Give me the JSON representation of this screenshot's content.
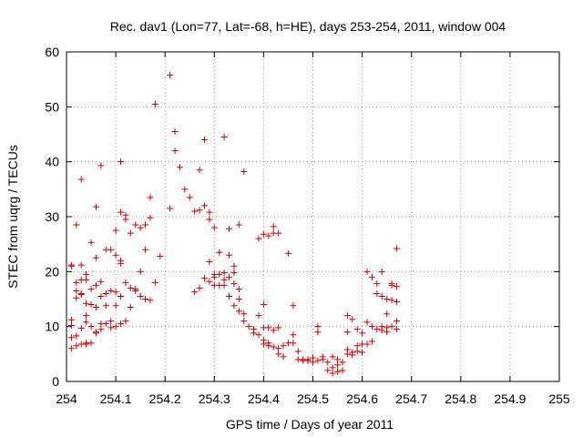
{
  "chart_data": {
    "type": "scatter",
    "title": "Rec. dav1 (Lon=77, Lat=-68, h=HE), days 253-254, 2011, window 004",
    "xlabel": "GPS time / Days of year 2011",
    "ylabel": "STEC from uqrg / TECUs",
    "xlim": [
      254,
      255
    ],
    "ylim": [
      0,
      60
    ],
    "x_ticks": [
      254,
      254.1,
      254.2,
      254.3,
      254.4,
      254.5,
      254.6,
      254.7,
      254.8,
      254.9,
      255
    ],
    "x_tick_labels": [
      "254",
      "254.1",
      "254.2",
      "254.3",
      "254.4",
      "254.5",
      "254.6",
      "254.7",
      "254.8",
      "254.9",
      "255"
    ],
    "y_ticks": [
      0,
      10,
      20,
      30,
      40,
      50,
      60
    ],
    "y_tick_labels": [
      "0",
      "10",
      "20",
      "30",
      "40",
      "50",
      "60"
    ],
    "grid": true,
    "marker": "plus",
    "color": "#cc0000",
    "series": [
      {
        "points": [
          [
            254.01,
            21.2
          ],
          [
            254.01,
            21.0
          ],
          [
            254.01,
            11.2
          ],
          [
            254.01,
            10.2
          ],
          [
            254.01,
            8.0
          ],
          [
            254.01,
            6.0
          ],
          [
            254.02,
            28.5
          ],
          [
            254.02,
            18.0
          ],
          [
            254.02,
            15.2
          ],
          [
            254.02,
            16.5
          ],
          [
            254.02,
            8.3
          ],
          [
            254.02,
            6.5
          ],
          [
            254.03,
            36.8
          ],
          [
            254.03,
            21.2
          ],
          [
            254.03,
            18.5
          ],
          [
            254.03,
            16.0
          ],
          [
            254.03,
            15.8
          ],
          [
            254.03,
            9.7
          ],
          [
            254.03,
            6.8
          ],
          [
            254.04,
            19.5
          ],
          [
            254.04,
            18.5
          ],
          [
            254.04,
            14.2
          ],
          [
            254.04,
            12.0
          ],
          [
            254.04,
            10.8
          ],
          [
            254.04,
            7.0
          ],
          [
            254.04,
            6.8
          ],
          [
            254.05,
            25.3
          ],
          [
            254.05,
            16.8
          ],
          [
            254.05,
            14.0
          ],
          [
            254.05,
            10.0
          ],
          [
            254.05,
            7.0
          ],
          [
            254.06,
            31.8
          ],
          [
            254.06,
            22.5
          ],
          [
            254.06,
            17.5
          ],
          [
            254.06,
            13.5
          ],
          [
            254.06,
            9.0
          ],
          [
            254.06,
            8.8
          ],
          [
            254.07,
            39.3
          ],
          [
            254.07,
            18.2
          ],
          [
            254.07,
            15.5
          ],
          [
            254.07,
            10.5
          ],
          [
            254.07,
            9.5
          ],
          [
            254.08,
            24.0
          ],
          [
            254.08,
            16.0
          ],
          [
            254.08,
            13.8
          ],
          [
            254.08,
            10.5
          ],
          [
            254.09,
            24.0
          ],
          [
            254.09,
            16.5
          ],
          [
            254.09,
            11.0
          ],
          [
            254.09,
            9.8
          ],
          [
            254.1,
            27.5
          ],
          [
            254.1,
            23.0
          ],
          [
            254.1,
            16.3
          ],
          [
            254.1,
            13.8
          ],
          [
            254.1,
            10.0
          ],
          [
            254.11,
            40.0
          ],
          [
            254.11,
            30.8
          ],
          [
            254.11,
            22.0
          ],
          [
            254.11,
            21.5
          ],
          [
            254.11,
            15.5
          ],
          [
            254.11,
            10.5
          ],
          [
            254.12,
            30.3
          ],
          [
            254.12,
            29.5
          ],
          [
            254.12,
            18.0
          ],
          [
            254.12,
            11.0
          ],
          [
            254.13,
            27.0
          ],
          [
            254.13,
            17.0
          ],
          [
            254.13,
            13.5
          ],
          [
            254.14,
            28.5
          ],
          [
            254.14,
            16.8
          ],
          [
            254.14,
            16.5
          ],
          [
            254.15,
            28.0
          ],
          [
            254.15,
            20.0
          ],
          [
            254.15,
            15.5
          ],
          [
            254.16,
            28.5
          ],
          [
            254.16,
            24.0
          ],
          [
            254.16,
            15.0
          ],
          [
            254.17,
            33.5
          ],
          [
            254.17,
            29.8
          ],
          [
            254.17,
            14.8
          ],
          [
            254.18,
            50.5
          ],
          [
            254.18,
            18.0
          ],
          [
            254.19,
            22.8
          ],
          [
            254.21,
            55.8
          ],
          [
            254.21,
            31.5
          ],
          [
            254.22,
            45.5
          ],
          [
            254.22,
            42.0
          ],
          [
            254.23,
            39.0
          ],
          [
            254.24,
            35.0
          ],
          [
            254.25,
            33.5
          ],
          [
            254.26,
            31.0
          ],
          [
            254.26,
            16.3
          ],
          [
            254.27,
            38.5
          ],
          [
            254.27,
            31.2
          ],
          [
            254.27,
            17.0
          ],
          [
            254.28,
            44.0
          ],
          [
            254.28,
            32.0
          ],
          [
            254.28,
            18.8
          ],
          [
            254.29,
            30.8
          ],
          [
            254.29,
            29.5
          ],
          [
            254.29,
            21.8
          ],
          [
            254.29,
            18.2
          ],
          [
            254.3,
            28.0
          ],
          [
            254.3,
            19.5
          ],
          [
            254.3,
            19.0
          ],
          [
            254.3,
            17.5
          ],
          [
            254.31,
            23.5
          ],
          [
            254.31,
            19.5
          ],
          [
            254.31,
            17.5
          ],
          [
            254.32,
            44.5
          ],
          [
            254.32,
            19.8
          ],
          [
            254.32,
            18.5
          ],
          [
            254.32,
            17.5
          ],
          [
            254.33,
            27.8
          ],
          [
            254.33,
            23.0
          ],
          [
            254.33,
            19.0
          ],
          [
            254.33,
            15.5
          ],
          [
            254.34,
            21.0
          ],
          [
            254.34,
            19.8
          ],
          [
            254.34,
            17.8
          ],
          [
            254.34,
            13.8
          ],
          [
            254.35,
            28.5
          ],
          [
            254.35,
            16.8
          ],
          [
            254.35,
            15.0
          ],
          [
            254.35,
            12.8
          ],
          [
            254.36,
            38.2
          ],
          [
            254.36,
            12.3
          ],
          [
            254.36,
            11.0
          ],
          [
            254.37,
            10.0
          ],
          [
            254.38,
            9.5
          ],
          [
            254.38,
            8.8
          ],
          [
            254.39,
            26.0
          ],
          [
            254.39,
            12.0
          ],
          [
            254.39,
            8.5
          ],
          [
            254.4,
            26.8
          ],
          [
            254.4,
            14.0
          ],
          [
            254.4,
            9.8
          ],
          [
            254.4,
            7.5
          ],
          [
            254.4,
            6.8
          ],
          [
            254.41,
            26.5
          ],
          [
            254.41,
            9.8
          ],
          [
            254.41,
            7.0
          ],
          [
            254.41,
            6.5
          ],
          [
            254.42,
            28.2
          ],
          [
            254.42,
            27.0
          ],
          [
            254.42,
            9.3
          ],
          [
            254.42,
            6.3
          ],
          [
            254.43,
            27.0
          ],
          [
            254.43,
            9.8
          ],
          [
            254.43,
            6.0
          ],
          [
            254.43,
            5.0
          ],
          [
            254.44,
            6.5
          ],
          [
            254.44,
            4.5
          ],
          [
            254.45,
            23.3
          ],
          [
            254.45,
            7.0
          ],
          [
            254.46,
            13.8
          ],
          [
            254.46,
            8.5
          ],
          [
            254.46,
            7.0
          ],
          [
            254.47,
            5.5
          ],
          [
            254.47,
            4.0
          ],
          [
            254.48,
            4.0
          ],
          [
            254.48,
            3.8
          ],
          [
            254.49,
            4.0
          ],
          [
            254.49,
            3.8
          ],
          [
            254.5,
            4.3
          ],
          [
            254.5,
            3.5
          ],
          [
            254.51,
            10.0
          ],
          [
            254.51,
            9.0
          ],
          [
            254.51,
            3.8
          ],
          [
            254.52,
            4.5
          ],
          [
            254.52,
            4.0
          ],
          [
            254.53,
            3.5
          ],
          [
            254.53,
            2.0
          ],
          [
            254.54,
            4.5
          ],
          [
            254.54,
            1.5
          ],
          [
            254.54,
            2.5
          ],
          [
            254.55,
            4.0
          ],
          [
            254.55,
            3.0
          ],
          [
            254.55,
            1.8
          ],
          [
            254.56,
            3.5
          ],
          [
            254.56,
            2.0
          ],
          [
            254.57,
            12.0
          ],
          [
            254.57,
            9.0
          ],
          [
            254.57,
            5.8
          ],
          [
            254.57,
            5.0
          ],
          [
            254.58,
            11.3
          ],
          [
            254.58,
            5.3
          ],
          [
            254.58,
            4.8
          ],
          [
            254.59,
            9.5
          ],
          [
            254.59,
            6.5
          ],
          [
            254.59,
            5.5
          ],
          [
            254.6,
            8.8
          ],
          [
            254.6,
            6.8
          ],
          [
            254.6,
            5.3
          ],
          [
            254.61,
            20.0
          ],
          [
            254.61,
            10.8
          ],
          [
            254.61,
            6.8
          ],
          [
            254.62,
            19.0
          ],
          [
            254.62,
            10.0
          ],
          [
            254.62,
            7.3
          ],
          [
            254.63,
            17.8
          ],
          [
            254.63,
            16.0
          ],
          [
            254.63,
            9.5
          ],
          [
            254.64,
            20.0
          ],
          [
            254.64,
            15.5
          ],
          [
            254.64,
            10.0
          ],
          [
            254.64,
            9.3
          ],
          [
            254.65,
            15.0
          ],
          [
            254.65,
            12.3
          ],
          [
            254.65,
            9.8
          ],
          [
            254.65,
            9.0
          ],
          [
            254.66,
            17.8
          ],
          [
            254.66,
            17.5
          ],
          [
            254.66,
            14.8
          ],
          [
            254.66,
            10.0
          ],
          [
            254.67,
            24.2
          ],
          [
            254.67,
            17.3
          ],
          [
            254.67,
            14.5
          ],
          [
            254.67,
            11.0
          ],
          [
            254.67,
            9.5
          ]
        ]
      }
    ]
  }
}
